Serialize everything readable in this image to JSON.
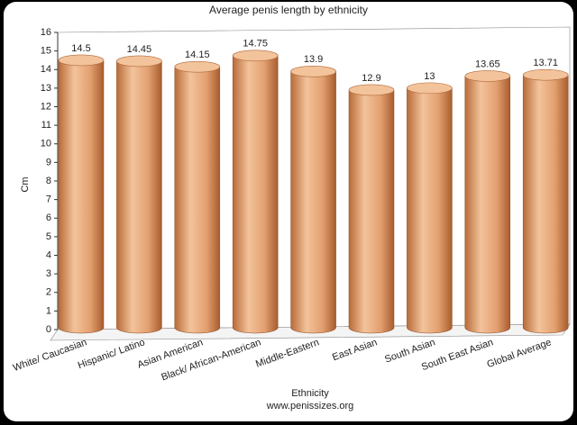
{
  "chart_data": {
    "type": "bar3d",
    "title": "Average penis length by ethnicity",
    "x_label": "Ethnicity",
    "y_label": "Cm",
    "footer": "www.penissizes.org",
    "categories": [
      "White/ Caucasian",
      "Hispanic/ Latino",
      "Asian American",
      "Black/ African-American",
      "Middle-Eastern",
      "East Asian",
      "South Asian",
      "South East Asian",
      "Global Average"
    ],
    "values": [
      14.5,
      14.45,
      14.15,
      14.75,
      13.9,
      12.9,
      13,
      13.65,
      13.71
    ],
    "color": "#f3c39b",
    "ylim": [
      0,
      16
    ],
    "yticks": [
      0,
      1,
      2,
      3,
      4,
      5,
      6,
      7,
      8,
      9,
      10,
      11,
      12,
      13,
      14,
      15,
      16
    ],
    "grid": false
  }
}
